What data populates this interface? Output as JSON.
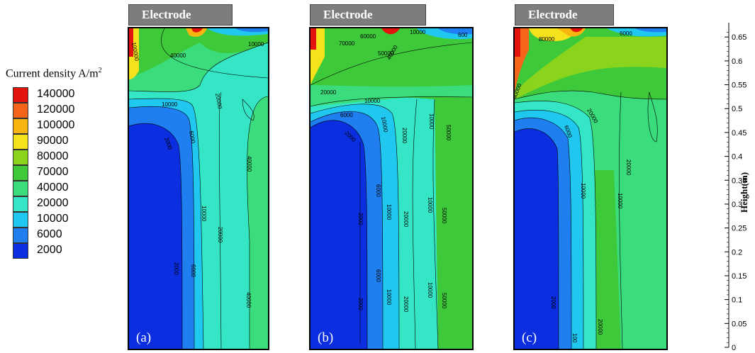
{
  "legend": {
    "title": "Current density A/m",
    "title_sup": "2",
    "entries": [
      {
        "label": "140000",
        "color": "#e3140e"
      },
      {
        "label": "120000",
        "color": "#f4641a"
      },
      {
        "label": "100000",
        "color": "#f8b510"
      },
      {
        "label": "90000",
        "color": "#f3e21c"
      },
      {
        "label": "80000",
        "color": "#8ad41e"
      },
      {
        "label": "70000",
        "color": "#3dc93a"
      },
      {
        "label": "40000",
        "color": "#3bdc7c"
      },
      {
        "label": "20000",
        "color": "#35e6c6"
      },
      {
        "label": "10000",
        "color": "#20c8f0"
      },
      {
        "label": "6000",
        "color": "#1f7ef0"
      },
      {
        "label": "2000",
        "color": "#0a2ee0"
      }
    ]
  },
  "panels": [
    {
      "id": "a",
      "label": "(a)",
      "electrode": "Electrode",
      "contour_labels": [
        "40000",
        "10000",
        "10000",
        "2000",
        "6000",
        "20000",
        "10000",
        "20000",
        "40000",
        "2000",
        "6000",
        "20000",
        "40000",
        "100000"
      ]
    },
    {
      "id": "b",
      "label": "(b)",
      "electrode": "Electrode",
      "contour_labels": [
        "60000",
        "70000",
        "50000",
        "40000",
        "10000",
        "600",
        "20000",
        "10000",
        "6000",
        "2000",
        "10000",
        "20000",
        "10000",
        "50000",
        "6000",
        "10000",
        "20000",
        "10000",
        "50000",
        "2000",
        "6000",
        "10000",
        "20000",
        "10000",
        "50000",
        "2000"
      ]
    },
    {
      "id": "c",
      "label": "(c)",
      "electrode": "Electrode",
      "contour_labels": [
        "80000",
        "6000",
        "40000",
        "20000",
        "6000",
        "10000",
        "20000",
        "10000",
        "2000",
        "20000",
        "100"
      ]
    }
  ],
  "chart_data": {
    "type": "heatmap",
    "title": "",
    "colorbar_label": "Current density A/m2",
    "colorbar_levels": [
      140000,
      120000,
      100000,
      90000,
      80000,
      70000,
      40000,
      20000,
      10000,
      6000,
      2000
    ],
    "ylabel": "Height(m)",
    "ylim": [
      0,
      0.68
    ],
    "y_ticks": [
      0,
      0.05,
      0.1,
      0.15,
      0.2,
      0.25,
      0.3,
      0.35,
      0.4,
      0.45,
      0.5,
      0.55,
      0.6,
      0.65
    ],
    "y_tick_labels": [
      "0",
      "0.05",
      "0.1",
      "0.15",
      "0.2",
      "0.25",
      "0.3",
      "0.35",
      "0.4",
      "0.45",
      "0.5",
      "0.55",
      "0.6",
      "0.65"
    ],
    "panels": [
      "(a)",
      "(b)",
      "(c)"
    ]
  }
}
